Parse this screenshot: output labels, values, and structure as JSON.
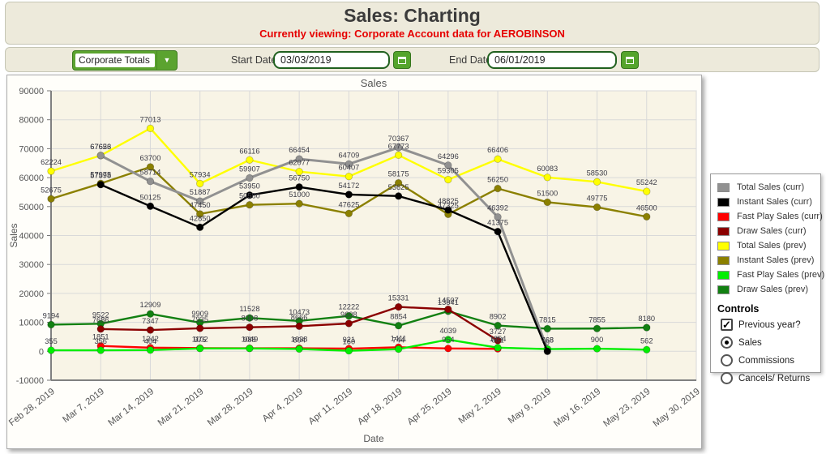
{
  "header": {
    "title": "Sales: Charting",
    "subtitle": "Currently viewing: Corporate Account data for AEROBINSON"
  },
  "toolbar": {
    "account_dropdown": {
      "value": "Corporate Totals"
    },
    "start_date": {
      "label": "Start Date",
      "value": "03/03/2019"
    },
    "end_date": {
      "label": "End Date",
      "value": "06/01/2019"
    }
  },
  "chart_data": {
    "type": "line",
    "title": "Sales",
    "xlabel": "Date",
    "ylabel": "Sales",
    "ylim": [
      -10000,
      90000
    ],
    "ytick_step": 10000,
    "grid": true,
    "legend_position": "right",
    "categories": [
      "Feb 28, 2019",
      "Mar 7, 2019",
      "Mar 14, 2019",
      "Mar 21, 2019",
      "Mar 28, 2019",
      "Apr 4, 2019",
      "Apr 11, 2019",
      "Apr 18, 2019",
      "Apr 25, 2019",
      "May 2, 2019",
      "May 9, 2019",
      "May 16, 2019",
      "May 23, 2019",
      "May 30, 2019"
    ],
    "draw_order": [
      4,
      5,
      7,
      0,
      2,
      6,
      3,
      1
    ],
    "series": [
      {
        "name": "Total Sales (curr)",
        "color": "#919191",
        "values": [
          null,
          67626,
          58714,
          51887,
          59907,
          66454,
          64709,
          70367,
          64296,
          46392,
          768,
          null,
          null,
          null
        ]
      },
      {
        "name": "Instant Sales (curr)",
        "color": "#000000",
        "values": [
          null,
          57598,
          50125,
          42850,
          53950,
          56750,
          54172,
          53625,
          48825,
          41375,
          0,
          null,
          null,
          null
        ]
      },
      {
        "name": "Fast Play Sales (curr)",
        "color": "#ff0000",
        "values": [
          null,
          1851,
          1242,
          1102,
          1049,
          1038,
          921,
          1411,
          964,
          851,
          null,
          null,
          null,
          null
        ]
      },
      {
        "name": "Draw Sales (curr)",
        "color": "#8b0000",
        "values": [
          null,
          7686,
          7347,
          7935,
          8308,
          8666,
          9608,
          15331,
          14507,
          3727,
          null,
          null,
          null,
          null
        ]
      },
      {
        "name": "Total Sales (prev)",
        "color": "#ffff00",
        "values": [
          62224,
          67653,
          77013,
          57934,
          66116,
          62077,
          60407,
          67773,
          59305,
          66406,
          60083,
          58530,
          55242,
          null
        ]
      },
      {
        "name": "Instant Sales (prev)",
        "color": "#8b8000",
        "values": [
          52675,
          57975,
          63700,
          47450,
          50580,
          51000,
          47625,
          58175,
          47325,
          56250,
          51500,
          49775,
          46500,
          null
        ]
      },
      {
        "name": "Fast Play Sales (prev)",
        "color": "#00ee00",
        "values": [
          355,
          356,
          404,
          975,
          988,
          804,
          160,
          744,
          4039,
          1254,
          768,
          900,
          562,
          null
        ]
      },
      {
        "name": "Draw Sales (prev)",
        "color": "#128012",
        "values": [
          9194,
          9522,
          12909,
          9909,
          11528,
          10473,
          12222,
          8854,
          13841,
          8902,
          7815,
          7855,
          8180,
          null
        ]
      }
    ]
  },
  "controls": {
    "heading": "Controls",
    "checkbox": {
      "label": "Previous year?",
      "checked": true
    },
    "radios": [
      {
        "label": "Sales",
        "selected": true
      },
      {
        "label": "Commissions",
        "selected": false
      },
      {
        "label": "Cancels/ Returns",
        "selected": false
      }
    ]
  }
}
